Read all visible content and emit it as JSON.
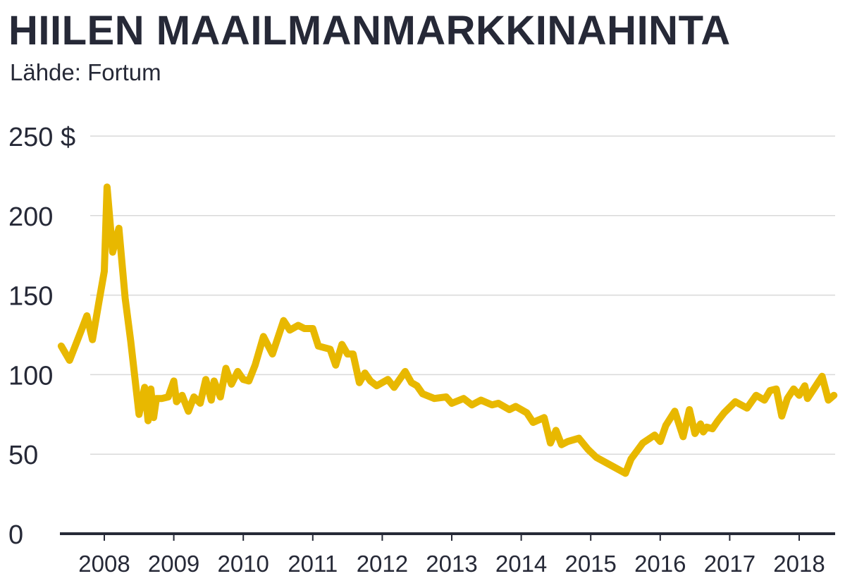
{
  "title": "HIILEN MAAILMANMARKKINAHINTA",
  "subtitle": "Lähde: Fortum",
  "chart_data": {
    "type": "line",
    "title": "HIILEN MAAILMANMARKKINAHINTA",
    "subtitle": "Lähde: Fortum",
    "xlabel": "",
    "ylabel": "",
    "y_unit": "$",
    "ylim": [
      0,
      250
    ],
    "y_ticks": [
      0,
      50,
      100,
      150,
      200,
      250
    ],
    "y_tick_labels": [
      "0",
      "50",
      "100",
      "150",
      "200",
      "250 $"
    ],
    "xlim": [
      2007.4,
      2018.5
    ],
    "x_ticks": [
      2008,
      2009,
      2010,
      2011,
      2012,
      2013,
      2014,
      2015,
      2016,
      2017,
      2018
    ],
    "x_tick_labels": [
      "2008",
      "2009",
      "2010",
      "2011",
      "2012",
      "2013",
      "2014",
      "2015",
      "2016",
      "2017",
      "2018"
    ],
    "grid": true,
    "colors": {
      "line": "#E8B800",
      "grid": "#D9D9D9",
      "axis": "#262937",
      "text": "#262937"
    },
    "series": [
      {
        "x": [
          2007.38,
          2007.5,
          2007.67,
          2007.75,
          2007.83,
          2007.92,
          2008.0,
          2008.04,
          2008.12,
          2008.21,
          2008.3,
          2008.38,
          2008.5,
          2008.58,
          2008.63,
          2008.67,
          2008.71,
          2008.75,
          2008.83,
          2008.92,
          2009.0,
          2009.04,
          2009.12,
          2009.21,
          2009.29,
          2009.38,
          2009.46,
          2009.54,
          2009.58,
          2009.67,
          2009.75,
          2009.83,
          2009.92,
          2010.0,
          2010.08,
          2010.17,
          2010.29,
          2010.42,
          2010.58,
          2010.67,
          2010.79,
          2010.88,
          2011.0,
          2011.08,
          2011.25,
          2011.33,
          2011.42,
          2011.5,
          2011.58,
          2011.67,
          2011.75,
          2011.83,
          2011.92,
          2012.08,
          2012.17,
          2012.33,
          2012.42,
          2012.5,
          2012.58,
          2012.75,
          2012.92,
          2013.0,
          2013.17,
          2013.29,
          2013.42,
          2013.58,
          2013.67,
          2013.83,
          2013.92,
          2014.08,
          2014.17,
          2014.33,
          2014.42,
          2014.5,
          2014.58,
          2014.67,
          2014.83,
          2014.96,
          2015.08,
          2015.5,
          2015.58,
          2015.75,
          2015.92,
          2016.0,
          2016.08,
          2016.21,
          2016.33,
          2016.42,
          2016.5,
          2016.58,
          2016.62,
          2016.67,
          2016.75,
          2016.83,
          2016.92,
          2017.08,
          2017.25,
          2017.38,
          2017.5,
          2017.58,
          2017.67,
          2017.75,
          2017.83,
          2017.92,
          2018.0,
          2018.08,
          2018.12,
          2018.21,
          2018.33,
          2018.42,
          2018.5
        ],
        "y": [
          118,
          109,
          128,
          137,
          122,
          145,
          165,
          218,
          177,
          192,
          148,
          121,
          75,
          92,
          71,
          91,
          73,
          85,
          85,
          86,
          96,
          83,
          87,
          77,
          86,
          82,
          97,
          84,
          96,
          86,
          104,
          94,
          102,
          97,
          96,
          106,
          124,
          113,
          134,
          128,
          131,
          129,
          129,
          118,
          116,
          106,
          119,
          113,
          113,
          95,
          101,
          96,
          93,
          97,
          92,
          102,
          95,
          93,
          88,
          85,
          86,
          82,
          85,
          81,
          84,
          81,
          82,
          78,
          80,
          76,
          70,
          73,
          57,
          65,
          56,
          58,
          60,
          53,
          48,
          38,
          47,
          57,
          62,
          58,
          68,
          77,
          61,
          78,
          63,
          69,
          64,
          67,
          66,
          71,
          76,
          83,
          79,
          87,
          84,
          90,
          91,
          74,
          85,
          91,
          87,
          93,
          85,
          91,
          99,
          84,
          87
        ]
      }
    ]
  }
}
